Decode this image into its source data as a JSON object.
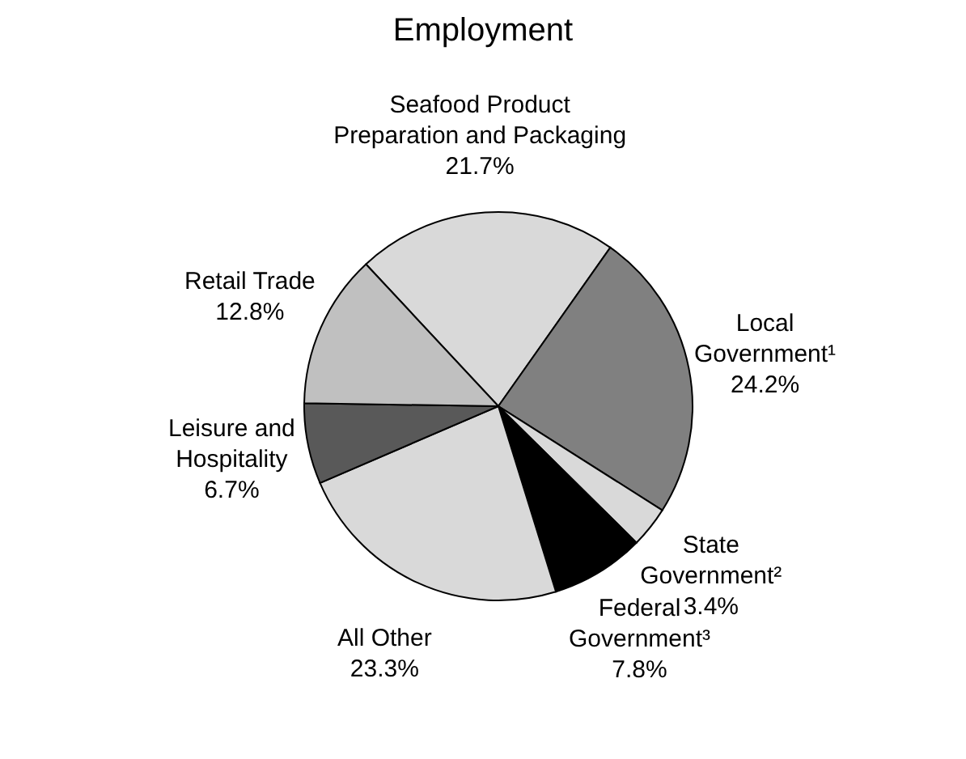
{
  "chart_data": {
    "type": "pie",
    "title": "Employment",
    "categories": [
      "Seafood Product Preparation and Packaging",
      "Local Government¹",
      "State Government²",
      "Federal Government³",
      "All Other",
      "Leisure and Hospitality",
      "Retail Trade"
    ],
    "values": [
      21.7,
      24.2,
      3.4,
      7.8,
      23.3,
      6.7,
      12.8
    ],
    "value_labels": [
      "21.7%",
      "24.2%",
      "3.4%",
      "7.8%",
      "23.3%",
      "6.7%",
      "12.8%"
    ],
    "colors": [
      "#d9d9d9",
      "#808080",
      "#d9d9d9",
      "#000000",
      "#d9d9d9",
      "#595959",
      "#c0c0c0"
    ]
  }
}
